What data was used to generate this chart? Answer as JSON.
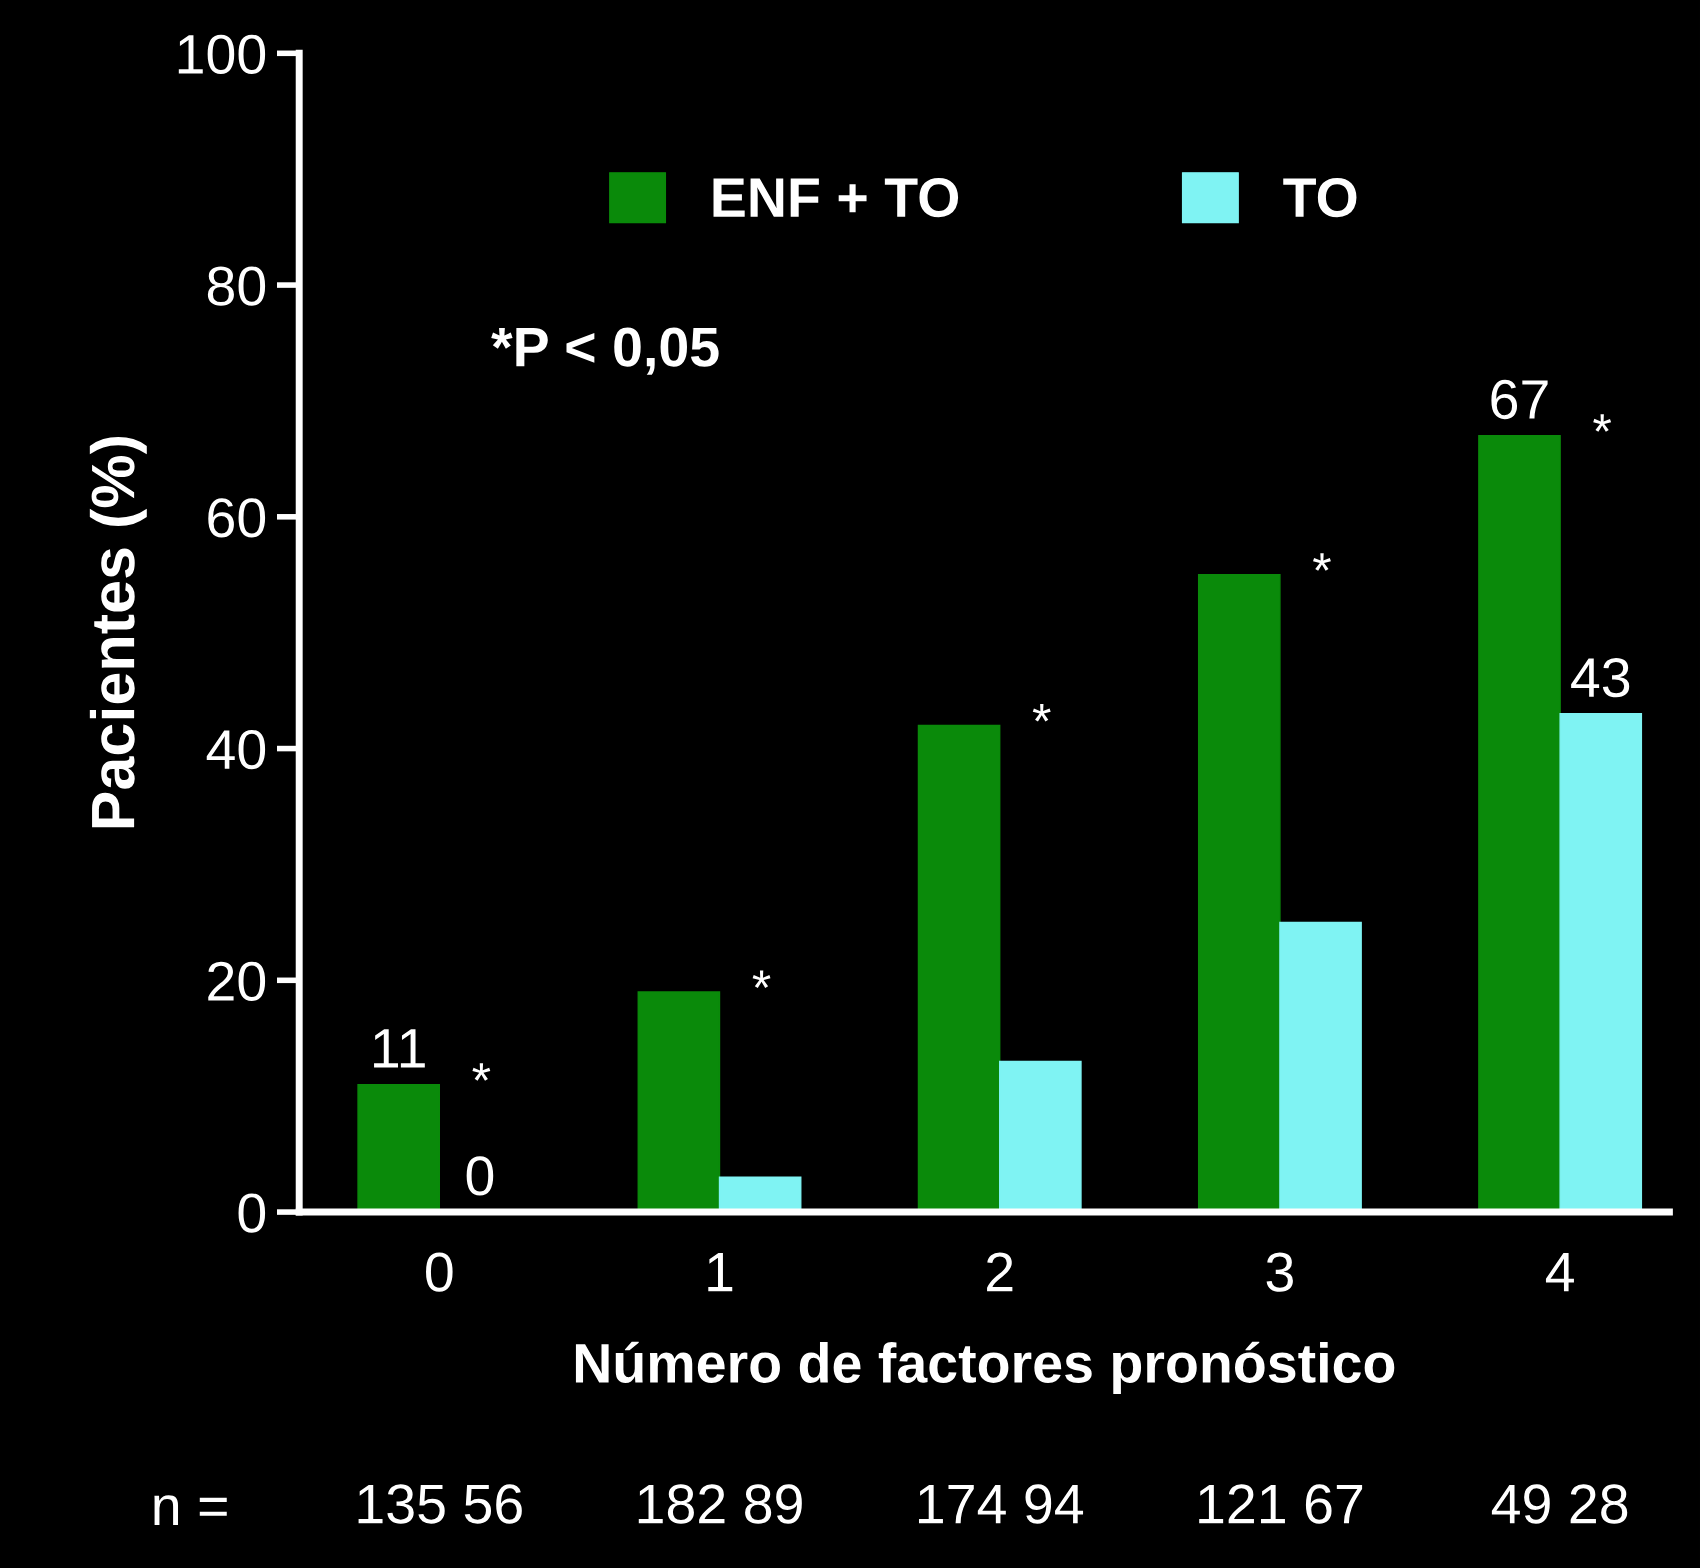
{
  "chart_data": {
    "type": "bar",
    "xlabel": "Número de factores pronóstico",
    "ylabel": "Pacientes (%)",
    "categories": [
      "0",
      "1",
      "2",
      "3",
      "4"
    ],
    "series": [
      {
        "name": "ENF + TO",
        "color": "#0a8a0a",
        "values": [
          11,
          19,
          42,
          55,
          67
        ],
        "value_labels": [
          "11",
          null,
          null,
          null,
          "67"
        ]
      },
      {
        "name": "TO",
        "color": "#7ff3f3",
        "values": [
          0,
          3,
          13,
          25,
          43
        ],
        "value_labels": [
          "0",
          null,
          null,
          null,
          "43"
        ]
      }
    ],
    "ylim": [
      0,
      100
    ],
    "yticks": [
      0,
      20,
      40,
      60,
      80,
      100
    ],
    "grid": false,
    "legend": "top",
    "annotations": [
      "*P < 0,05",
      "n =",
      "135 56",
      "182 89",
      "174 94",
      "121 67",
      "49 28",
      {
        "text": "*",
        "x": "0",
        "y": 11
      },
      {
        "text": "*",
        "x": "1",
        "y": 19
      },
      {
        "text": "*",
        "x": "2",
        "y": 42
      },
      {
        "text": "*",
        "x": "3",
        "y": 55
      },
      {
        "text": "*",
        "x": "4",
        "y": 67
      }
    ]
  }
}
